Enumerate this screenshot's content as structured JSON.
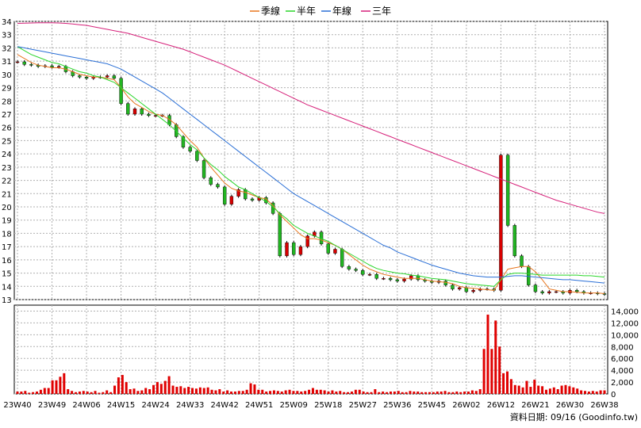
{
  "chart_data": [
    {
      "type": "candlestick",
      "legend": [
        {
          "name": "季線",
          "color": "#E8761E"
        },
        {
          "name": "半年",
          "color": "#2BD62B"
        },
        {
          "name": "年線",
          "color": "#2A6FD6"
        },
        {
          "name": "三年",
          "color": "#D6217A"
        }
      ],
      "legend_placement": "top-center",
      "x_labels": [
        "23W40",
        "23W49",
        "24W06",
        "24W15",
        "24W24",
        "24W33",
        "24W42",
        "24W51",
        "25W09",
        "25W18",
        "25W27",
        "25W36",
        "25W45",
        "26W02",
        "26W12",
        "26W21",
        "26W30",
        "26W38"
      ],
      "ylim": [
        13,
        34
      ],
      "y_ticks": [
        13,
        14,
        15,
        16,
        17,
        18,
        19,
        20,
        21,
        22,
        23,
        24,
        25,
        26,
        27,
        28,
        29,
        30,
        31,
        32,
        33,
        34
      ],
      "grid": true,
      "price_close": [
        30.95,
        30.75,
        30.7,
        30.6,
        30.65,
        30.55,
        30.6,
        30.2,
        29.9,
        29.8,
        29.7,
        29.8,
        29.8,
        29.9,
        29.7,
        27.8,
        27,
        27.4,
        27,
        26.9,
        26.9,
        26.9,
        26.2,
        25.3,
        24.5,
        24.2,
        23.5,
        22.2,
        21.7,
        21.5,
        20.2,
        20.8,
        21.3,
        20.6,
        20.5,
        20.7,
        20.3,
        19.5,
        16.3,
        17.3,
        16.4,
        17,
        17.8,
        18.1,
        17.2,
        16.5,
        16.8,
        15.5,
        15.3,
        15.2,
        14.9,
        14.9,
        14.6,
        14.6,
        14.5,
        14.4,
        14.55,
        14.8,
        14.5,
        14.4,
        14.3,
        14.4,
        14.1,
        13.8,
        13.9,
        13.6,
        13.7,
        13.8,
        13.8,
        13.7,
        23.9,
        18.6,
        16.3,
        15.5,
        14.1,
        13.6,
        13.5,
        13.6,
        13.6,
        13.5,
        13.7,
        13.6,
        13.5,
        13.5,
        13.45,
        13.4
      ],
      "ma_quarter": [
        31.5,
        31.2,
        30.9,
        30.7,
        30.6,
        30.5,
        30.5,
        30.4,
        30.2,
        30.0,
        29.9,
        29.8,
        29.8,
        29.7,
        29.6,
        29.0,
        28.3,
        27.8,
        27.5,
        27.2,
        27.0,
        26.9,
        26.6,
        26.2,
        25.6,
        25.0,
        24.5,
        23.7,
        23.0,
        22.4,
        21.8,
        21.4,
        21.2,
        21.1,
        20.9,
        20.7,
        20.6,
        20.1,
        19.4,
        18.9,
        18.4,
        17.9,
        17.6,
        17.6,
        17.5,
        17.3,
        17.1,
        16.8,
        16.4,
        16.0,
        15.6,
        15.3,
        15.1,
        14.9,
        14.8,
        14.7,
        14.6,
        14.6,
        14.6,
        14.5,
        14.4,
        14.35,
        14.3,
        14.2,
        14.0,
        13.9,
        13.85,
        13.8,
        13.75,
        13.7,
        14.5,
        15.3,
        15.4,
        15.5,
        15.5,
        15.1,
        14.5,
        13.8,
        13.7,
        13.6,
        13.6,
        13.55,
        13.5,
        13.5,
        13.5,
        13.45
      ],
      "ma_halfyear": [
        32.1,
        31.8,
        31.5,
        31.3,
        31.1,
        30.9,
        30.8,
        30.6,
        30.4,
        30.2,
        30.1,
        29.9,
        29.8,
        29.6,
        29.4,
        29.0,
        28.6,
        28.2,
        27.8,
        27.4,
        27.0,
        26.6,
        26.2,
        25.7,
        25.2,
        24.7,
        24.3,
        23.7,
        23.2,
        22.8,
        22.3,
        21.9,
        21.5,
        21.3,
        21.0,
        20.7,
        20.4,
        20.0,
        19.5,
        19.1,
        18.6,
        18.3,
        18.0,
        17.8,
        17.6,
        17.4,
        17.1,
        16.8,
        16.5,
        16.2,
        15.9,
        15.6,
        15.35,
        15.2,
        15.1,
        15.0,
        14.95,
        14.85,
        14.8,
        14.7,
        14.6,
        14.55,
        14.5,
        14.4,
        14.3,
        14.2,
        14.15,
        14.1,
        14.05,
        14.0,
        14.5,
        14.9,
        15.0,
        15.0,
        14.95,
        14.9,
        14.85,
        14.85,
        14.85,
        14.85,
        14.85,
        14.85,
        14.8,
        14.8,
        14.75,
        14.7
      ],
      "ma_year": [
        32.1,
        32.0,
        31.9,
        31.8,
        31.7,
        31.6,
        31.5,
        31.4,
        31.3,
        31.2,
        31.1,
        31.0,
        30.9,
        30.8,
        30.6,
        30.4,
        30.1,
        29.8,
        29.5,
        29.2,
        28.9,
        28.6,
        28.2,
        27.8,
        27.4,
        27.0,
        26.6,
        26.2,
        25.8,
        25.4,
        25.0,
        24.6,
        24.2,
        23.8,
        23.4,
        23.0,
        22.6,
        22.2,
        21.8,
        21.4,
        21.0,
        20.7,
        20.4,
        20.1,
        19.8,
        19.5,
        19.2,
        18.9,
        18.6,
        18.3,
        18.0,
        17.7,
        17.4,
        17.1,
        16.9,
        16.6,
        16.4,
        16.2,
        16.0,
        15.8,
        15.6,
        15.45,
        15.3,
        15.15,
        15.0,
        14.9,
        14.8,
        14.75,
        14.7,
        14.7,
        14.7,
        14.75,
        14.8,
        14.8,
        14.75,
        14.7,
        14.65,
        14.6,
        14.55,
        14.5,
        14.5,
        14.45,
        14.4,
        14.35,
        14.3,
        14.25
      ],
      "ma_3year": [
        33.85,
        33.86,
        33.88,
        33.9,
        33.9,
        33.9,
        33.88,
        33.85,
        33.8,
        33.75,
        33.7,
        33.6,
        33.5,
        33.4,
        33.3,
        33.2,
        33.1,
        32.95,
        32.8,
        32.65,
        32.5,
        32.35,
        32.2,
        32.05,
        31.9,
        31.7,
        31.5,
        31.3,
        31.1,
        30.9,
        30.7,
        30.45,
        30.2,
        29.95,
        29.7,
        29.45,
        29.2,
        28.95,
        28.7,
        28.45,
        28.2,
        27.95,
        27.7,
        27.5,
        27.3,
        27.1,
        26.9,
        26.7,
        26.5,
        26.3,
        26.1,
        25.9,
        25.7,
        25.5,
        25.3,
        25.1,
        24.9,
        24.7,
        24.5,
        24.3,
        24.1,
        23.9,
        23.7,
        23.5,
        23.3,
        23.1,
        22.9,
        22.7,
        22.5,
        22.3,
        22.1,
        21.9,
        21.7,
        21.5,
        21.3,
        21.1,
        20.9,
        20.7,
        20.5,
        20.35,
        20.2,
        20.05,
        19.9,
        19.75,
        19.6,
        19.5
      ]
    },
    {
      "type": "bar",
      "ylim": [
        0,
        15000
      ],
      "y_ticks": [
        0,
        2000,
        4000,
        6000,
        8000,
        10000,
        12000,
        14000
      ],
      "y_tick_labels": [
        "0",
        "2,000",
        "4,000",
        "6,000",
        "8,000",
        "10,000",
        "12,000",
        "14,000"
      ],
      "volume": [
        400,
        400,
        500,
        200,
        300,
        400,
        700,
        1000,
        1000,
        2300,
        2300,
        2900,
        3500,
        800,
        500,
        300,
        400,
        500,
        400,
        300,
        500,
        200,
        300,
        600,
        300,
        1400,
        2800,
        3200,
        2000,
        800,
        900,
        500,
        600,
        1000,
        800,
        1500,
        2000,
        1700,
        2200,
        3000,
        1400,
        1200,
        1300,
        1000,
        1200,
        1000,
        900,
        1100,
        1000,
        1100,
        700,
        600,
        800,
        400,
        600,
        400,
        400,
        500,
        500,
        700,
        1800,
        1600,
        700,
        700,
        400,
        500,
        600,
        500,
        400,
        600,
        700,
        500,
        500,
        400,
        500,
        700,
        1000,
        700,
        700,
        600,
        400,
        600,
        400,
        500,
        300,
        300,
        400,
        700,
        700,
        400,
        300,
        300,
        800,
        300,
        400,
        300,
        400,
        400,
        500,
        300,
        300,
        500,
        400,
        400,
        300,
        300,
        300,
        300,
        400,
        400,
        500,
        300,
        300,
        400,
        300,
        400,
        400,
        600,
        500,
        800,
        7600,
        13400,
        7600,
        12400,
        8000,
        3500,
        3800,
        2500,
        1500,
        1400,
        1100,
        2200,
        1200,
        2400,
        1400,
        1300,
        700,
        900,
        1100,
        800,
        1400,
        1500,
        1300,
        1100,
        900,
        600,
        500,
        400,
        500,
        400,
        600,
        600
      ]
    }
  ],
  "footer": {
    "text": "資料日期: 09/16 (Goodinfo.tw)"
  }
}
